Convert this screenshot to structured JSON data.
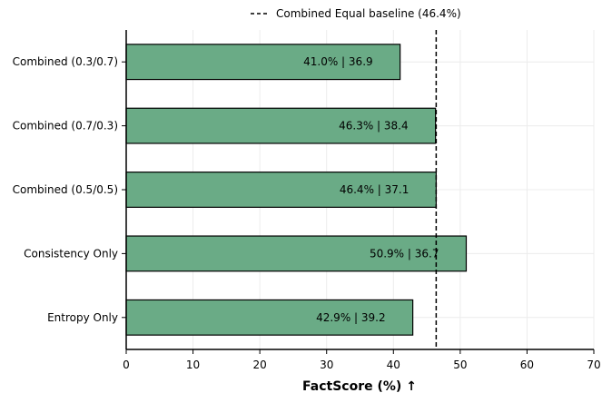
{
  "chart_data": {
    "type": "bar",
    "orientation": "horizontal",
    "categories": [
      "Combined (0.3/0.7)",
      "Combined (0.7/0.3)",
      "Combined (0.5/0.5)",
      "Consistency Only",
      "Entropy Only"
    ],
    "values": [
      41.0,
      46.3,
      46.4,
      50.9,
      42.9
    ],
    "data_labels": [
      "41.0% | 36.9",
      "46.3% | 38.4",
      "46.4% | 37.1",
      "50.9% | 36.7",
      "42.9% | 39.2"
    ],
    "xlabel": "FactScore (%) ↑",
    "ylabel": "",
    "title": "",
    "xlim": [
      0,
      70
    ],
    "xticks": [
      0,
      10,
      20,
      30,
      40,
      50,
      60,
      70
    ],
    "grid": true,
    "legend_position": "top-center",
    "baseline": {
      "value": 46.4,
      "label": "Combined Equal baseline (46.4%)",
      "style": "dashed"
    },
    "colors": {
      "bar_fill": "#6aab86",
      "bar_edge": "#000000",
      "grid": "#ececec",
      "baseline": "#000000"
    }
  }
}
